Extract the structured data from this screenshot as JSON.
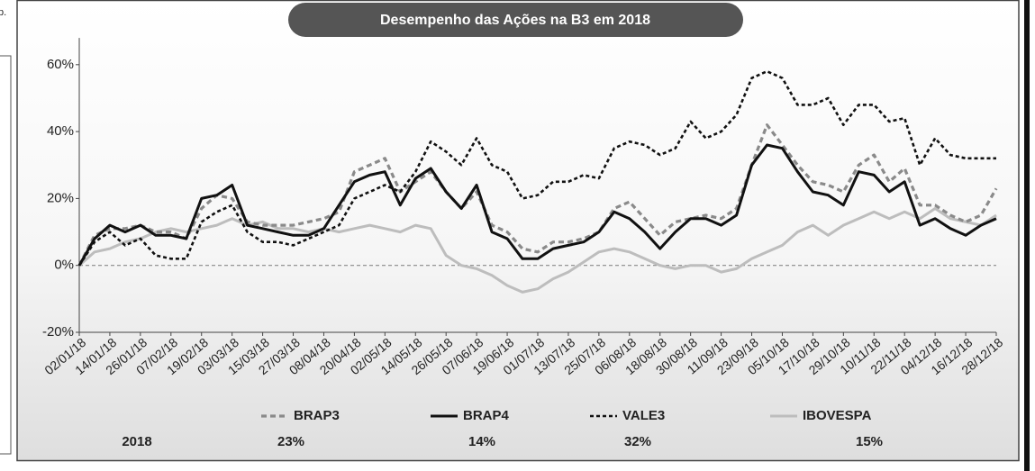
{
  "side_note": "p.",
  "chart_data": {
    "type": "line",
    "title": "Desempenho das Ações na B3 em 2018",
    "categories": [
      "02/01/18",
      null,
      "14/01/18",
      null,
      "26/01/18",
      null,
      "07/02/18",
      null,
      "19/02/18",
      null,
      "03/03/18",
      null,
      "15/03/18",
      null,
      "27/03/18",
      null,
      "08/04/18",
      null,
      "20/04/18",
      null,
      "02/05/18",
      null,
      "14/05/18",
      null,
      "26/05/18",
      null,
      "07/06/18",
      null,
      "19/06/18",
      null,
      "01/07/18",
      null,
      "13/07/18",
      null,
      "25/07/18",
      null,
      "06/08/18",
      null,
      "18/08/18",
      null,
      "30/08/18",
      null,
      "11/09/18",
      null,
      "23/09/18",
      null,
      "05/10/18",
      null,
      "17/10/18",
      null,
      "29/10/18",
      null,
      "10/11/18",
      null,
      "22/11/18",
      null,
      "04/12/18",
      null,
      "16/12/18",
      null,
      "28/12/18"
    ],
    "ylim": [
      -20,
      68
    ],
    "yticks": [
      {
        "value": -20,
        "label": "-20%"
      },
      {
        "value": 0,
        "label": "0%"
      },
      {
        "value": 20,
        "label": "20%"
      },
      {
        "value": 40,
        "label": "40%"
      },
      {
        "value": 60,
        "label": "60%"
      }
    ],
    "series": [
      {
        "name": "BRAP3",
        "color": "#8a8a8a",
        "dash": "dashed",
        "values": [
          0,
          9,
          11,
          11,
          12,
          10,
          10,
          8,
          17,
          21,
          20,
          13,
          12,
          12,
          12,
          13,
          14,
          16,
          28,
          30,
          32,
          22,
          25,
          28,
          22,
          17,
          22,
          12,
          10,
          5,
          4,
          7,
          7,
          8,
          10,
          17,
          19,
          14,
          9,
          13,
          14,
          15,
          14,
          17,
          30,
          42,
          36,
          30,
          25,
          24,
          22,
          30,
          33,
          25,
          29,
          18,
          18,
          15,
          13,
          15,
          23
        ]
      },
      {
        "name": "BRAP4",
        "color": "#111111",
        "dash": "solid",
        "values": [
          0,
          8,
          12,
          10,
          12,
          9,
          9,
          8,
          20,
          21,
          24,
          12,
          11,
          10,
          9,
          9,
          11,
          18,
          25,
          27,
          28,
          18,
          26,
          29,
          22,
          17,
          24,
          10,
          8,
          2,
          2,
          5,
          6,
          7,
          10,
          16,
          14,
          10,
          5,
          10,
          14,
          14,
          12,
          15,
          30,
          36,
          35,
          28,
          22,
          21,
          18,
          28,
          27,
          22,
          25,
          12,
          14,
          11,
          9,
          12,
          14
        ]
      },
      {
        "name": "VALE3",
        "color": "#111111",
        "dash": "dotted",
        "values": [
          0,
          7,
          10,
          6,
          8,
          3,
          2,
          2,
          13,
          16,
          18,
          10,
          7,
          7,
          6,
          8,
          10,
          12,
          20,
          22,
          24,
          22,
          28,
          37,
          34,
          30,
          38,
          30,
          28,
          20,
          21,
          25,
          25,
          27,
          26,
          35,
          37,
          36,
          33,
          35,
          43,
          38,
          40,
          45,
          56,
          58,
          56,
          48,
          48,
          50,
          42,
          48,
          48,
          43,
          44,
          30,
          38,
          33,
          32,
          32,
          32
        ]
      },
      {
        "name": "IBOVESPA",
        "color": "#bdbdbd",
        "dash": "solid",
        "values": [
          0,
          4,
          5,
          7,
          8,
          10,
          11,
          10,
          11,
          12,
          14,
          12,
          13,
          11,
          11,
          10,
          11,
          10,
          11,
          12,
          11,
          10,
          12,
          11,
          3,
          0,
          -1,
          -3,
          -6,
          -8,
          -7,
          -4,
          -2,
          1,
          4,
          5,
          4,
          2,
          0,
          -1,
          0,
          0,
          -2,
          -1,
          2,
          4,
          6,
          10,
          12,
          9,
          12,
          14,
          16,
          14,
          16,
          14,
          17,
          14,
          13,
          12,
          15
        ]
      }
    ],
    "summary": {
      "label": "2018",
      "values": [
        23,
        14,
        32,
        15
      ],
      "value_labels": [
        "23%",
        "14%",
        "32%",
        "15%"
      ]
    }
  }
}
